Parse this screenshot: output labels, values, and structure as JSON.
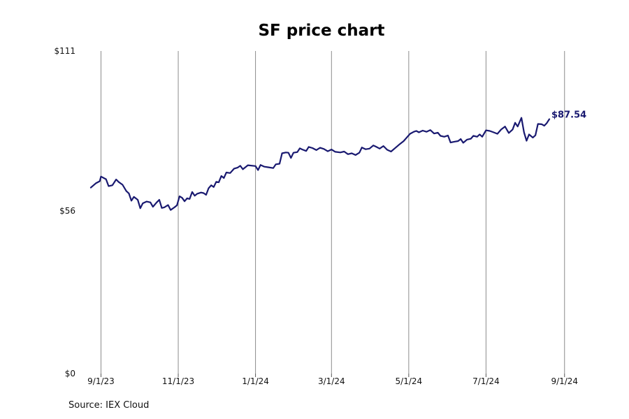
{
  "chart_data": {
    "type": "line",
    "title": "SF price chart",
    "xlabel": "",
    "ylabel": "",
    "ylim": [
      0,
      111
    ],
    "y_ticks": [
      {
        "value": 111,
        "label": "$111"
      },
      {
        "value": 56,
        "label": "$56"
      },
      {
        "value": 0,
        "label": "$0"
      }
    ],
    "x_ticks": [
      {
        "date": "2023-09-01",
        "label": "9/1/23"
      },
      {
        "date": "2023-11-01",
        "label": "11/1/23"
      },
      {
        "date": "2024-01-01",
        "label": "1/1/24"
      },
      {
        "date": "2024-03-01",
        "label": "3/1/24"
      },
      {
        "date": "2024-05-01",
        "label": "5/1/24"
      },
      {
        "date": "2024-07-01",
        "label": "7/1/24"
      },
      {
        "date": "2024-09-01",
        "label": "9/1/24"
      }
    ],
    "xlim": [
      "2023-08-24",
      "2024-09-05"
    ],
    "grid": "vertical",
    "line_color": "#191970",
    "last_value_label": "$87.54",
    "series": [
      {
        "points": [
          [
            "2023-08-24",
            64.0
          ],
          [
            "2023-08-28",
            65.5
          ],
          [
            "2023-08-31",
            66.2
          ],
          [
            "2023-09-01",
            67.8
          ],
          [
            "2023-09-05",
            66.9
          ],
          [
            "2023-09-07",
            64.5
          ],
          [
            "2023-09-10",
            64.8
          ],
          [
            "2023-09-13",
            66.8
          ],
          [
            "2023-09-15",
            65.9
          ],
          [
            "2023-09-18",
            65.0
          ],
          [
            "2023-09-21",
            62.8
          ],
          [
            "2023-09-23",
            62.0
          ],
          [
            "2023-09-25",
            59.5
          ],
          [
            "2023-09-27",
            60.8
          ],
          [
            "2023-09-30",
            59.8
          ],
          [
            "2023-10-02",
            56.9
          ],
          [
            "2023-10-04",
            58.6
          ],
          [
            "2023-10-07",
            59.2
          ],
          [
            "2023-10-10",
            58.9
          ],
          [
            "2023-10-12",
            57.4
          ],
          [
            "2023-10-15",
            58.9
          ],
          [
            "2023-10-17",
            59.8
          ],
          [
            "2023-10-19",
            57.0
          ],
          [
            "2023-10-21",
            57.2
          ],
          [
            "2023-10-24",
            58.0
          ],
          [
            "2023-10-26",
            56.3
          ],
          [
            "2023-10-29",
            57.2
          ],
          [
            "2023-10-31",
            57.9
          ],
          [
            "2023-11-02",
            61.0
          ],
          [
            "2023-11-04",
            60.5
          ],
          [
            "2023-11-06",
            59.3
          ],
          [
            "2023-11-08",
            60.3
          ],
          [
            "2023-11-10",
            60.1
          ],
          [
            "2023-11-12",
            62.5
          ],
          [
            "2023-11-14",
            61.2
          ],
          [
            "2023-11-16",
            61.9
          ],
          [
            "2023-11-19",
            62.3
          ],
          [
            "2023-11-21",
            62.1
          ],
          [
            "2023-11-23",
            61.5
          ],
          [
            "2023-11-25",
            63.8
          ],
          [
            "2023-11-27",
            64.8
          ],
          [
            "2023-11-29",
            64.2
          ],
          [
            "2023-12-01",
            66.0
          ],
          [
            "2023-12-03",
            65.8
          ],
          [
            "2023-12-05",
            68.0
          ],
          [
            "2023-12-07",
            67.3
          ],
          [
            "2023-12-09",
            69.2
          ],
          [
            "2023-12-12",
            69.0
          ],
          [
            "2023-12-15",
            70.5
          ],
          [
            "2023-12-18",
            70.9
          ],
          [
            "2023-12-20",
            71.5
          ],
          [
            "2023-12-22",
            70.3
          ],
          [
            "2023-12-26",
            71.7
          ],
          [
            "2024-01-01",
            71.4
          ],
          [
            "2024-01-03",
            70.0
          ],
          [
            "2024-01-05",
            71.8
          ],
          [
            "2024-01-08",
            71.2
          ],
          [
            "2024-01-11",
            71.0
          ],
          [
            "2024-01-15",
            70.7
          ],
          [
            "2024-01-17",
            72.0
          ],
          [
            "2024-01-20",
            72.2
          ],
          [
            "2024-01-22",
            75.8
          ],
          [
            "2024-01-25",
            76.1
          ],
          [
            "2024-01-27",
            76.0
          ],
          [
            "2024-01-29",
            74.2
          ],
          [
            "2024-01-31",
            76.0
          ],
          [
            "2024-02-03",
            76.2
          ],
          [
            "2024-02-05",
            77.5
          ],
          [
            "2024-02-07",
            77.1
          ],
          [
            "2024-02-10",
            76.6
          ],
          [
            "2024-02-12",
            78.0
          ],
          [
            "2024-02-15",
            77.6
          ],
          [
            "2024-02-18",
            76.9
          ],
          [
            "2024-02-21",
            77.7
          ],
          [
            "2024-02-24",
            77.3
          ],
          [
            "2024-02-27",
            76.5
          ],
          [
            "2024-03-01",
            77.1
          ],
          [
            "2024-03-04",
            76.3
          ],
          [
            "2024-03-08",
            76.1
          ],
          [
            "2024-03-11",
            76.4
          ],
          [
            "2024-03-14",
            75.5
          ],
          [
            "2024-03-17",
            75.8
          ],
          [
            "2024-03-20",
            75.2
          ],
          [
            "2024-03-23",
            76.0
          ],
          [
            "2024-03-25",
            77.8
          ],
          [
            "2024-03-28",
            77.2
          ],
          [
            "2024-03-31",
            77.4
          ],
          [
            "2024-04-03",
            78.5
          ],
          [
            "2024-04-05",
            78.1
          ],
          [
            "2024-04-08",
            77.4
          ],
          [
            "2024-04-11",
            78.3
          ],
          [
            "2024-04-14",
            77.0
          ],
          [
            "2024-04-17",
            76.4
          ],
          [
            "2024-04-20",
            77.5
          ],
          [
            "2024-04-24",
            79.0
          ],
          [
            "2024-04-27",
            80.0
          ],
          [
            "2024-04-30",
            81.5
          ],
          [
            "2024-05-02",
            82.5
          ],
          [
            "2024-05-05",
            83.2
          ],
          [
            "2024-05-07",
            83.5
          ],
          [
            "2024-05-09",
            83.0
          ],
          [
            "2024-05-12",
            83.6
          ],
          [
            "2024-05-15",
            83.2
          ],
          [
            "2024-05-18",
            83.8
          ],
          [
            "2024-05-21",
            82.6
          ],
          [
            "2024-05-24",
            82.9
          ],
          [
            "2024-05-26",
            81.8
          ],
          [
            "2024-05-29",
            81.5
          ],
          [
            "2024-06-01",
            81.9
          ],
          [
            "2024-06-03",
            79.5
          ],
          [
            "2024-06-06",
            79.8
          ],
          [
            "2024-06-09",
            80.0
          ],
          [
            "2024-06-11",
            80.7
          ],
          [
            "2024-06-13",
            79.4
          ],
          [
            "2024-06-16",
            80.5
          ],
          [
            "2024-06-19",
            80.8
          ],
          [
            "2024-06-21",
            81.8
          ],
          [
            "2024-06-24",
            81.5
          ],
          [
            "2024-06-26",
            82.3
          ],
          [
            "2024-06-28",
            81.5
          ],
          [
            "2024-07-01",
            83.7
          ],
          [
            "2024-07-04",
            83.5
          ],
          [
            "2024-07-07",
            83.0
          ],
          [
            "2024-07-10",
            82.5
          ],
          [
            "2024-07-13",
            84.0
          ],
          [
            "2024-07-16",
            85.0
          ],
          [
            "2024-07-19",
            82.8
          ],
          [
            "2024-07-22",
            84.0
          ],
          [
            "2024-07-24",
            86.3
          ],
          [
            "2024-07-26",
            85.0
          ],
          [
            "2024-07-29",
            88.0
          ],
          [
            "2024-07-31",
            83.0
          ],
          [
            "2024-08-02",
            80.1
          ],
          [
            "2024-08-04",
            82.3
          ],
          [
            "2024-08-07",
            81.2
          ],
          [
            "2024-08-09",
            82.0
          ],
          [
            "2024-08-11",
            85.9
          ],
          [
            "2024-08-14",
            85.8
          ],
          [
            "2024-08-16",
            85.3
          ],
          [
            "2024-08-18",
            86.2
          ],
          [
            "2024-08-20",
            87.54
          ]
        ]
      }
    ]
  },
  "source_text": "Source: IEX Cloud"
}
